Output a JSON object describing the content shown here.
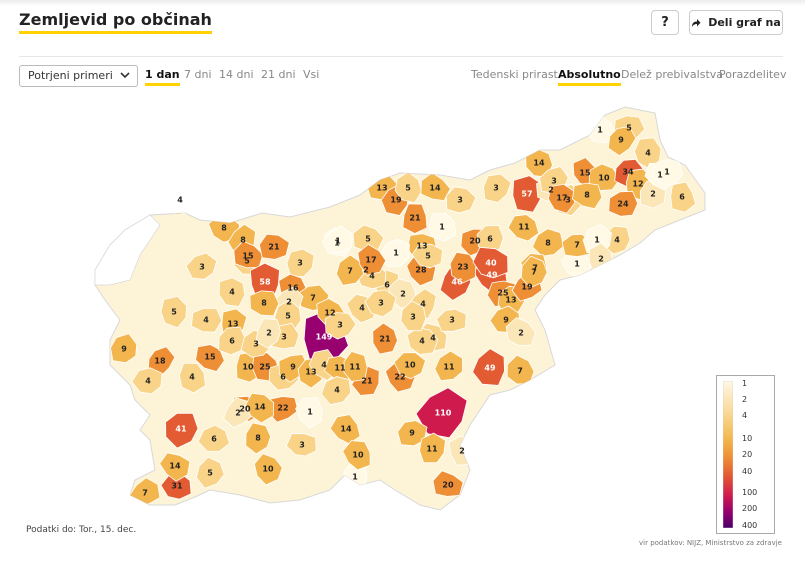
{
  "title": "Zemljevid po občinah",
  "header": {
    "help_label": "?",
    "share_label": "Deli graf na"
  },
  "filter": {
    "selected": "Potrjeni primeri"
  },
  "time_tabs": [
    {
      "label": "1 dan",
      "active": true
    },
    {
      "label": "7 dni",
      "active": false
    },
    {
      "label": "14 dni",
      "active": false
    },
    {
      "label": "21 dni",
      "active": false
    },
    {
      "label": "Vsi",
      "active": false
    }
  ],
  "mode_tabs": [
    {
      "label": "Tedenski prirast",
      "active": false
    },
    {
      "label": "Absolutno",
      "active": true
    },
    {
      "label": "Delež prebivalstva",
      "active": false
    },
    {
      "label": "Porazdelitev",
      "active": false
    }
  ],
  "legend": {
    "stops": [
      "1",
      "2",
      "4",
      "10",
      "20",
      "40",
      "100",
      "200",
      "400"
    ],
    "colors": [
      "#fff9e6",
      "#fbe6b8",
      "#f8d388",
      "#f3b54d",
      "#ee8e35",
      "#e35b33",
      "#cf1a4e",
      "#97006e",
      "#4a0069"
    ]
  },
  "footer": {
    "data_date": "Podatki do: Tor., 15. dec.",
    "source": "vir podatkov: NIJZ, Ministrstvo za zdravje"
  },
  "map_values": [
    "4",
    "8",
    "3",
    "8",
    "5",
    "15",
    "21",
    "3",
    "58",
    "16",
    "7",
    "2",
    "5",
    "1",
    "5",
    "2",
    "13",
    "4",
    "8",
    "3",
    "9",
    "149",
    "12",
    "3",
    "18",
    "5",
    "15",
    "4",
    "6",
    "10",
    "25",
    "6",
    "9",
    "13",
    "4",
    "11",
    "3",
    "2",
    "4",
    "20",
    "22",
    "41",
    "1",
    "14",
    "6",
    "2",
    "8",
    "14",
    "3",
    "4",
    "1",
    "10",
    "31",
    "7",
    "5",
    "10",
    "14",
    "4",
    "21",
    "11",
    "4",
    "3",
    "11",
    "21",
    "22",
    "10",
    "110",
    "49",
    "7",
    "20",
    "9",
    "11",
    "2",
    "4",
    "13",
    "19",
    "5",
    "14",
    "3",
    "3",
    "57",
    "14",
    "2",
    "3",
    "3",
    "15",
    "10",
    "34",
    "12",
    "17",
    "8",
    "24",
    "2",
    "6",
    "1",
    "5",
    "9",
    "4",
    "1",
    "1",
    "4",
    "21",
    "1",
    "13",
    "20",
    "6",
    "49",
    "11",
    "8",
    "46",
    "23",
    "40",
    "25",
    "13",
    "7",
    "1",
    "9",
    "19",
    "7",
    "28",
    "5",
    "1",
    "6",
    "2",
    "4",
    "1",
    "7",
    "17",
    "4",
    "3",
    "4",
    "3",
    "2",
    "7",
    "1",
    "2"
  ]
}
